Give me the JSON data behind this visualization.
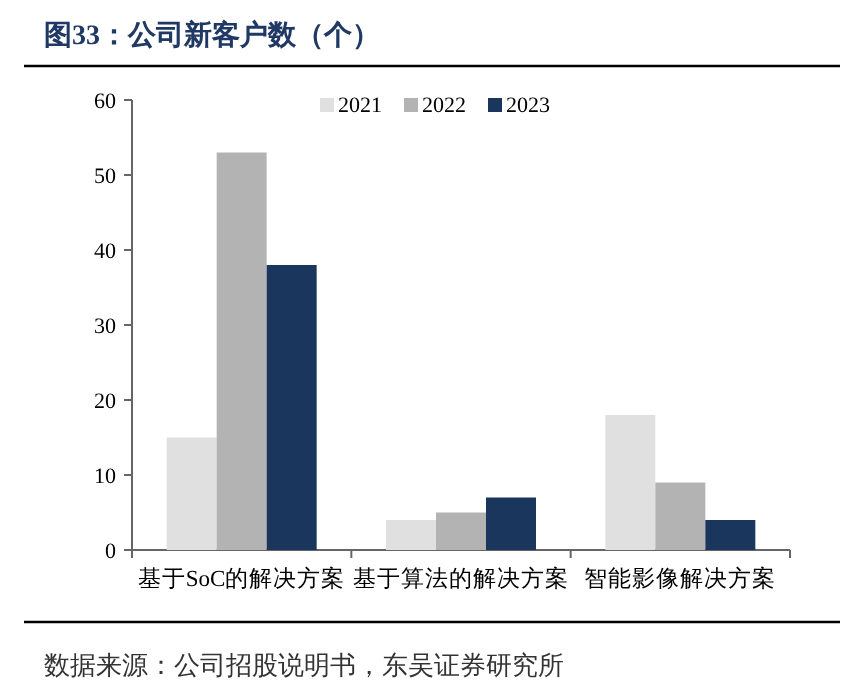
{
  "chart_data": {
    "type": "bar",
    "title": "图33：公司新客户数（个）",
    "categories": [
      "基于SoC的解决方案",
      "基于算法的解决方案",
      "智能影像解决方案"
    ],
    "series": [
      {
        "name": "2021",
        "color": "#e0e0e0",
        "values": [
          15,
          4,
          18
        ]
      },
      {
        "name": "2022",
        "color": "#b3b3b3",
        "values": [
          53,
          5,
          9
        ]
      },
      {
        "name": "2023",
        "color": "#1b365d",
        "values": [
          38,
          7,
          4
        ]
      }
    ],
    "ylim": [
      0,
      60
    ],
    "yticks": [
      0,
      10,
      20,
      30,
      40,
      50,
      60
    ],
    "legend": "top",
    "grid": false,
    "annotations": [
      "数据来源：公司招股说明书，东吴证券研究所"
    ]
  }
}
